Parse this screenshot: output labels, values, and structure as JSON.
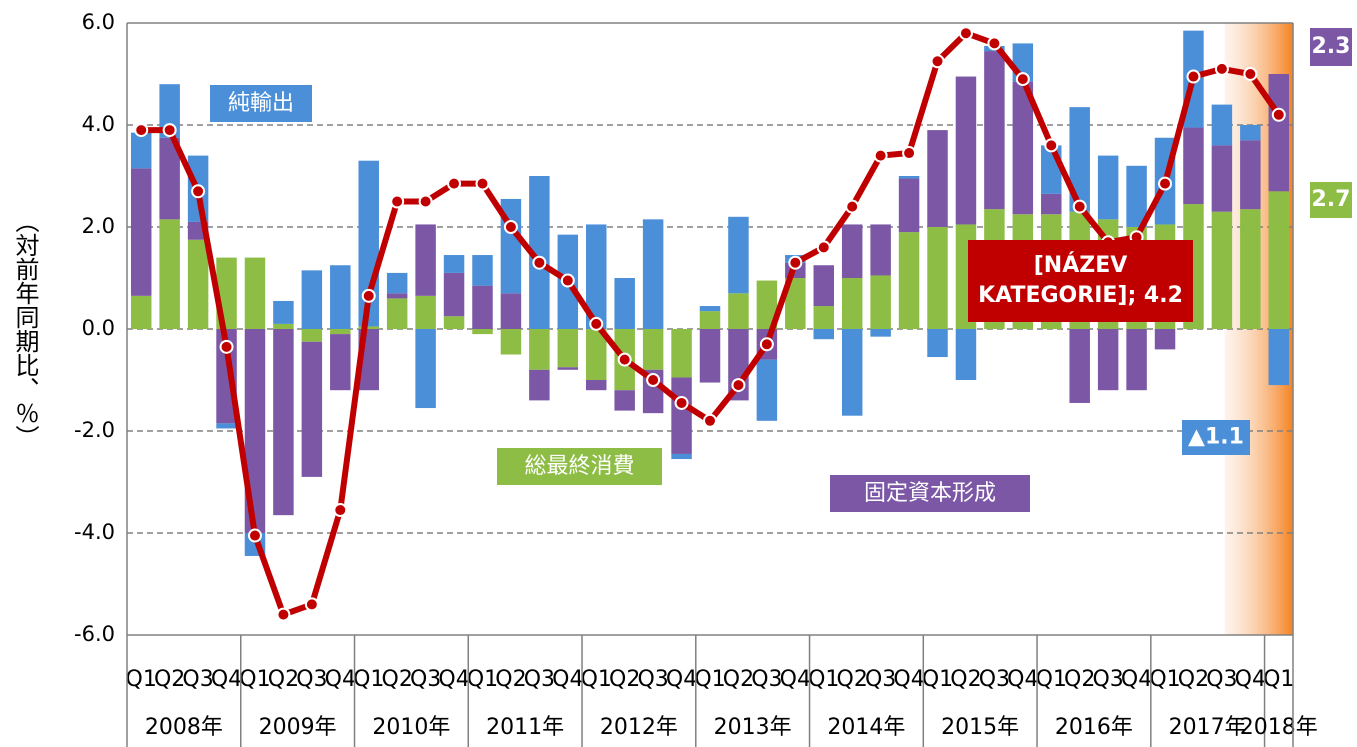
{
  "chart_data": {
    "type": "stacked_bar_line",
    "y_label": "（対前年同期比、％）",
    "categories": [
      "Q1",
      "Q2",
      "Q3",
      "Q4",
      "Q1",
      "Q2",
      "Q3",
      "Q4",
      "Q1",
      "Q2",
      "Q3",
      "Q4",
      "Q1",
      "Q2",
      "Q3",
      "Q4",
      "Q1",
      "Q2",
      "Q3",
      "Q4",
      "Q1",
      "Q2",
      "Q3",
      "Q4",
      "Q1",
      "Q2",
      "Q3",
      "Q4",
      "Q1",
      "Q2",
      "Q3",
      "Q4",
      "Q1",
      "Q2",
      "Q3",
      "Q4",
      "Q1",
      "Q2",
      "Q3",
      "Q4",
      "Q1"
    ],
    "years": [
      "2008年",
      "2009年",
      "2010年",
      "2011年",
      "2012年",
      "2013年",
      "2014年",
      "2015年",
      "2016年",
      "2017年",
      "2018年"
    ],
    "ylim": [
      -6,
      6
    ],
    "yticks": [
      {
        "value": -6,
        "label": "-6.0"
      },
      {
        "value": -4,
        "label": "-4.0"
      },
      {
        "value": -2,
        "label": "-2.0"
      },
      {
        "value": 0,
        "label": "0.0"
      },
      {
        "value": 2,
        "label": "2.0"
      },
      {
        "value": 4,
        "label": "4.0"
      },
      {
        "value": 6,
        "label": "6.0"
      }
    ],
    "grid": true,
    "series": [
      {
        "name": "総最終消費",
        "color": "#8dbd45",
        "label_last": true,
        "values": [
          0.65,
          2.15,
          1.75,
          1.4,
          1.4,
          0.1,
          -0.25,
          -0.1,
          0.05,
          0.6,
          0.65,
          0.25,
          -0.1,
          -0.5,
          -0.8,
          -0.75,
          -1.0,
          -1.2,
          -0.8,
          -0.95,
          0.35,
          0.7,
          0.95,
          1.0,
          0.45,
          1.0,
          1.05,
          1.9,
          2.0,
          2.05,
          2.35,
          2.25,
          2.25,
          2.3,
          2.15,
          2.0,
          2.05,
          2.45,
          2.3,
          2.35,
          2.7
        ]
      },
      {
        "name": "固定資本形成",
        "color": "#7b57a6",
        "label_last": true,
        "values": [
          2.5,
          1.6,
          0.35,
          -1.85,
          -4.0,
          -3.65,
          -2.65,
          -1.1,
          -1.2,
          0.1,
          1.4,
          0.85,
          0.85,
          0.7,
          -0.6,
          -0.05,
          -0.2,
          -0.4,
          -0.85,
          -1.5,
          -1.05,
          -1.4,
          -0.6,
          0.3,
          0.8,
          1.05,
          1.0,
          1.05,
          1.9,
          2.9,
          3.1,
          2.6,
          0.4,
          -1.45,
          -1.2,
          -1.2,
          -0.4,
          1.5,
          1.3,
          1.35,
          2.3
        ]
      },
      {
        "name": "純輸出",
        "color": "#4a8fd8",
        "label_last": true,
        "last_label": "▲1.1",
        "values": [
          0.7,
          1.05,
          1.3,
          -0.1,
          -0.45,
          0.45,
          1.15,
          1.25,
          3.25,
          0.4,
          -1.55,
          0.35,
          0.6,
          1.85,
          3.0,
          1.85,
          2.05,
          1.0,
          2.15,
          -0.1,
          0.1,
          1.5,
          -1.2,
          0.15,
          -0.2,
          -1.7,
          -0.15,
          0.05,
          -0.55,
          -1.0,
          0.1,
          0.75,
          0.95,
          2.05,
          1.25,
          1.2,
          1.7,
          1.9,
          0.8,
          0.3,
          -1.1
        ]
      },
      {
        "type": "line",
        "color": "#c00000",
        "label_last": true,
        "last_label": "[NÁZEV KATEGORIE]; 4.2",
        "values": [
          3.9,
          3.9,
          2.7,
          -0.35,
          -4.05,
          -5.6,
          -5.4,
          -3.55,
          0.65,
          2.5,
          2.5,
          2.85,
          2.85,
          2.0,
          1.3,
          0.95,
          0.1,
          -0.6,
          -1.0,
          -1.45,
          -1.8,
          -1.1,
          -0.3,
          1.3,
          1.6,
          2.4,
          3.4,
          3.45,
          5.25,
          5.8,
          5.6,
          4.9,
          3.6,
          2.4,
          1.7,
          1.8,
          2.85,
          4.95,
          5.1,
          5.0,
          4.2
        ]
      }
    ]
  }
}
